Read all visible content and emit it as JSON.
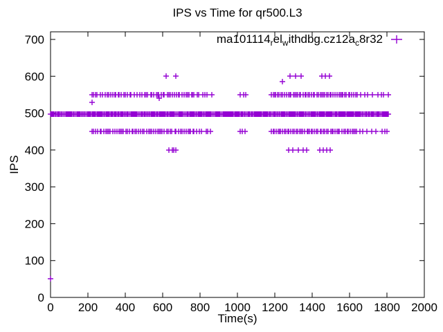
{
  "chart_data": {
    "type": "scatter",
    "title": "IPS vs Time for qr500.L3",
    "xlabel": "Time(s)",
    "ylabel": "IPS",
    "xlim": [
      0,
      2000
    ],
    "ylim": [
      0,
      700
    ],
    "xticks": [
      0,
      200,
      400,
      600,
      800,
      1000,
      1200,
      1400,
      1600,
      1800,
      2000
    ],
    "yticks": [
      0,
      100,
      200,
      300,
      400,
      500,
      600,
      700
    ],
    "grid": false,
    "legend_position": "top-right-inside",
    "series": [
      {
        "name": "ma101114_rel_withdbg.cz12a_c8r32",
        "name_segments": [
          {
            "t": "ma101114"
          },
          {
            "t": "r",
            "sub": true
          },
          {
            "t": "el"
          },
          {
            "t": "w",
            "sub": true
          },
          {
            "t": "ithdbg.cz12a"
          },
          {
            "t": "c",
            "sub": true
          },
          {
            "t": "8r32"
          }
        ],
        "marker": "plus",
        "color": "#9400D3",
        "bands": [
          {
            "y": 497,
            "x_start": 0,
            "x_end": 1806,
            "step": 4,
            "note": "dense solid band ~495-500 IPS"
          },
          {
            "y": 550,
            "x_start": 222,
            "x_end": 800,
            "step": 10
          },
          {
            "y": 550,
            "x_start": 806,
            "x_end": 876,
            "step": 18
          },
          {
            "y": 550,
            "x_start": 1016,
            "x_end": 1054,
            "step": 13
          },
          {
            "y": 550,
            "x_start": 1180,
            "x_end": 1642,
            "step": 9
          },
          {
            "y": 550,
            "x_start": 1655,
            "x_end": 1812,
            "step": 22
          },
          {
            "y": 450,
            "x_start": 222,
            "x_end": 800,
            "step": 10
          },
          {
            "y": 450,
            "x_start": 806,
            "x_end": 876,
            "step": 18
          },
          {
            "y": 450,
            "x_start": 1016,
            "x_end": 1054,
            "step": 13
          },
          {
            "y": 450,
            "x_start": 1180,
            "x_end": 1642,
            "step": 9
          },
          {
            "y": 450,
            "x_start": 1655,
            "x_end": 1812,
            "step": 22
          }
        ],
        "points": [
          [
            0,
            50
          ],
          [
            222,
            530
          ],
          [
            582,
            540
          ],
          [
            618,
            600
          ],
          [
            670,
            600
          ],
          [
            1240,
            585
          ],
          [
            1281,
            600
          ],
          [
            1312,
            600
          ],
          [
            1342,
            600
          ],
          [
            1452,
            600
          ],
          [
            1470,
            600
          ],
          [
            1493,
            600
          ],
          [
            632,
            400
          ],
          [
            650,
            400
          ],
          [
            660,
            400
          ],
          [
            672,
            400
          ],
          [
            1275,
            400
          ],
          [
            1298,
            400
          ],
          [
            1325,
            400
          ],
          [
            1352,
            400
          ],
          [
            1370,
            400
          ],
          [
            1440,
            400
          ],
          [
            1460,
            400
          ],
          [
            1478,
            400
          ],
          [
            1497,
            400
          ],
          [
            1809,
            497
          ]
        ]
      }
    ]
  }
}
